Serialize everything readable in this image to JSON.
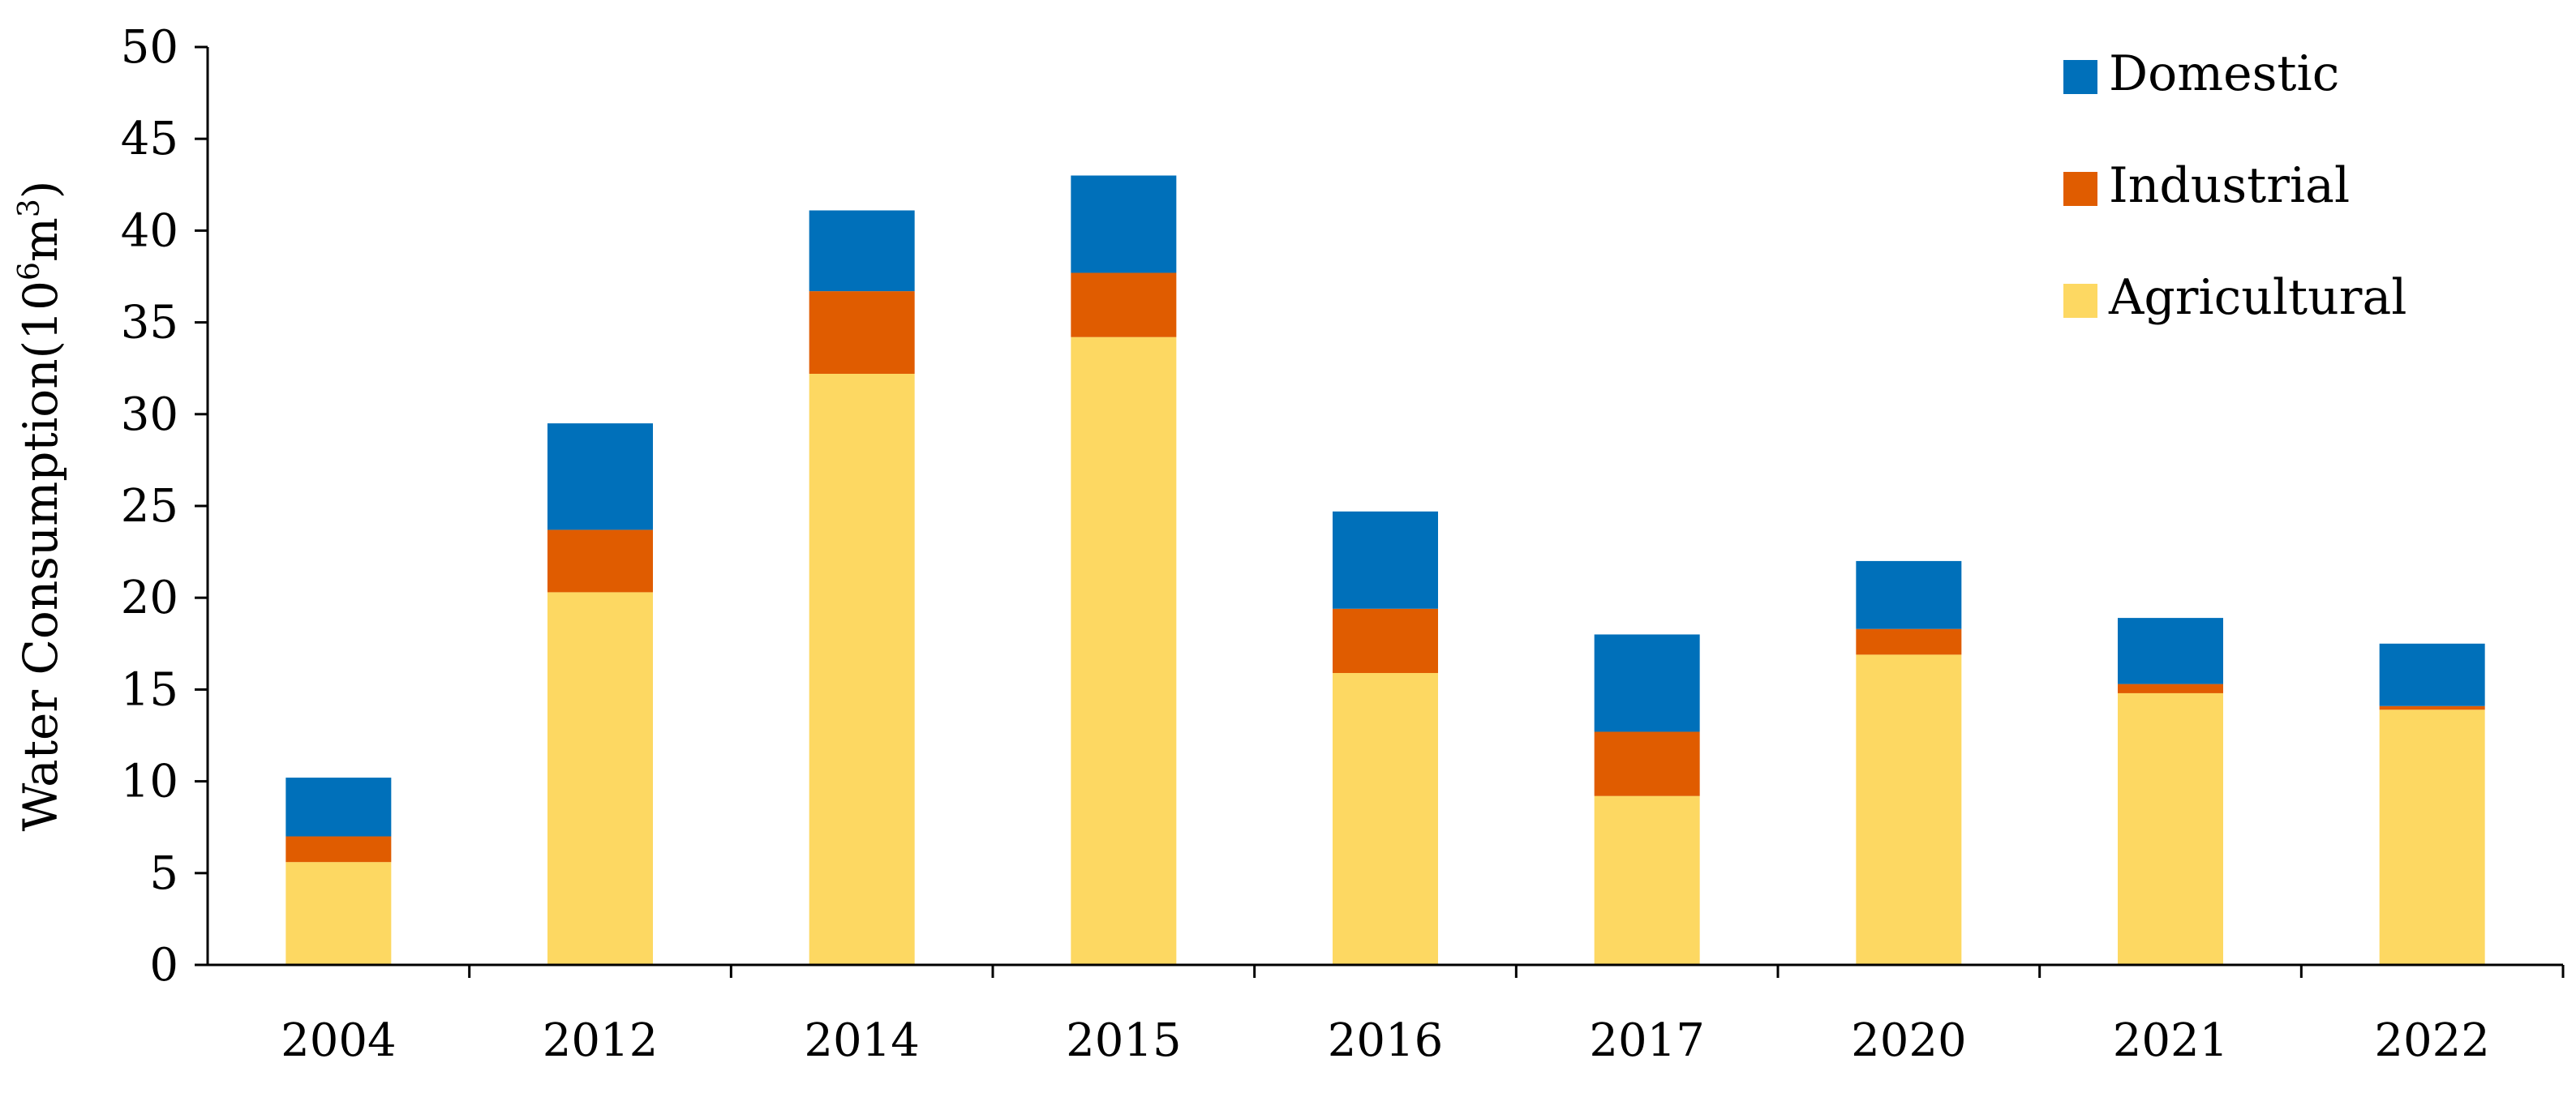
{
  "chart_data": {
    "type": "bar",
    "stacked": true,
    "categories": [
      "2004",
      "2012",
      "2014",
      "2015",
      "2016",
      "2017",
      "2020",
      "2021",
      "2022"
    ],
    "series": [
      {
        "name": "Agricultural",
        "color": "#FDD862",
        "values": [
          5.6,
          20.3,
          32.2,
          34.2,
          15.9,
          9.2,
          16.9,
          14.8,
          13.9
        ]
      },
      {
        "name": "Industrial",
        "color": "#E05C00",
        "values": [
          1.4,
          3.4,
          4.5,
          3.5,
          3.5,
          3.5,
          1.4,
          0.5,
          0.2
        ]
      },
      {
        "name": "Domestic",
        "color": "#0070BA",
        "values": [
          3.2,
          5.8,
          4.4,
          5.3,
          5.3,
          5.3,
          3.7,
          3.6,
          3.4
        ]
      }
    ],
    "ylabel_prefix": "Water Consumption(10",
    "ylabel_sup1": "6",
    "ylabel_mid": "m",
    "ylabel_sup2": "3",
    "ylabel_suffix": ")",
    "ylim": [
      0,
      50
    ],
    "yticks": [
      0,
      5,
      10,
      15,
      20,
      25,
      30,
      35,
      40,
      45,
      50
    ],
    "legend_order": [
      "Domestic",
      "Industrial",
      "Agricultural"
    ],
    "legend_position": "top-right",
    "grid": false
  }
}
